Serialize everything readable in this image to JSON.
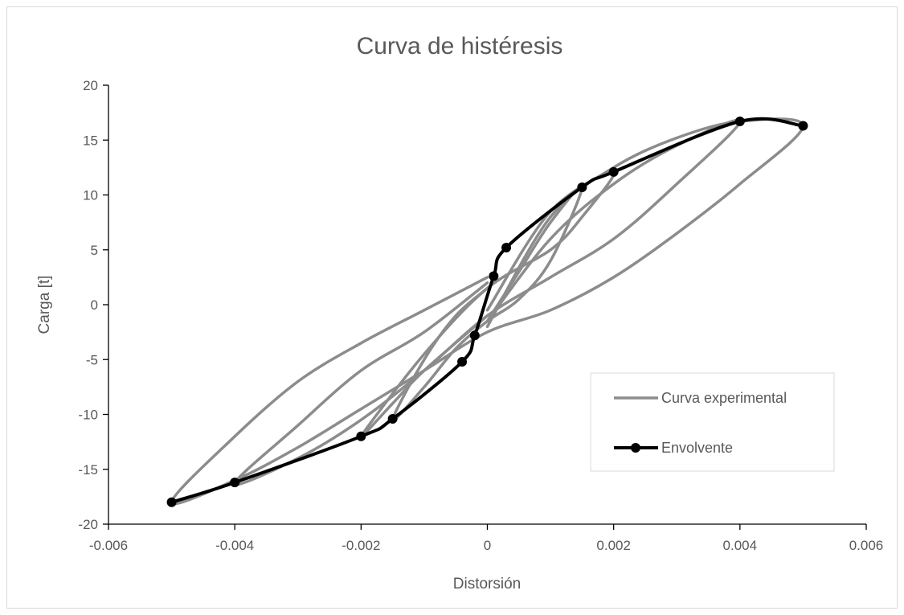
{
  "chart_data": {
    "type": "line",
    "title": "Curva de histéresis",
    "xlabel": "Distorsión",
    "ylabel": "Carga [t]",
    "xlim": [
      -0.006,
      0.006
    ],
    "ylim": [
      -20,
      20
    ],
    "xticks": [
      "-0.006",
      "-0.004",
      "-0.002",
      "0",
      "0.002",
      "0.004",
      "0.006"
    ],
    "yticks": [
      "20",
      "15",
      "10",
      "5",
      "0",
      "-5",
      "-10",
      "-15",
      "-20"
    ],
    "grid": false,
    "legend_position": "bottom-right",
    "colors": {
      "experimental": "#8c8c8c",
      "envelope": "#000000",
      "text": "#595959",
      "axis": "#000000"
    },
    "series": [
      {
        "name": "Curva experimental",
        "cycles": [
          {
            "x": [
              0,
              0.0005,
              0.001,
              0.0015,
              0.001,
              0.0005,
              0,
              -0.0005,
              -0.001,
              -0.0015,
              -0.001,
              -0.0005,
              0
            ],
            "y": [
              -1.5,
              3,
              7.5,
              10.7,
              4,
              0.5,
              -1.5,
              -4,
              -7.5,
              -10.5,
              -5,
              -1,
              1.5
            ]
          },
          {
            "x": [
              0,
              0.001,
              0.002,
              0.0015,
              0.001,
              0,
              -0.001,
              -0.002,
              -0.0015,
              -0.001,
              0
            ],
            "y": [
              -0.5,
              8.5,
              12.1,
              8,
              5,
              1.5,
              -4.5,
              -12,
              -9,
              -6,
              -1
            ]
          },
          {
            "x": [
              0,
              0.001,
              0.002,
              0.003,
              0.004,
              0.003,
              0.002,
              0.001,
              0,
              -0.001,
              -0.002,
              -0.003,
              -0.004,
              -0.003,
              -0.002,
              -0.001,
              0
            ],
            "y": [
              -1.5,
              6,
              11,
              14.5,
              16.7,
              11,
              6,
              2.5,
              -1,
              -6,
              -10.5,
              -14,
              -16.3,
              -11,
              -6,
              -2.5,
              2
            ]
          },
          {
            "x": [
              0,
              0.001,
              0.002,
              0.003,
              0.004,
              0.005,
              0.004,
              0.003,
              0.002,
              0.001,
              0,
              -0.001,
              -0.002,
              -0.003,
              -0.004,
              -0.005,
              -0.004,
              -0.003,
              -0.002,
              -0.001,
              0
            ],
            "y": [
              -2,
              8,
              12.5,
              15.2,
              16.7,
              16.3,
              11,
              6.5,
              2.5,
              -0.5,
              -2.5,
              -6,
              -9.5,
              -13,
              -16,
              -18,
              -12,
              -7,
              -3.5,
              -0.5,
              2.5
            ]
          }
        ]
      },
      {
        "name": "Envolvente",
        "x": [
          -0.005,
          -0.004,
          -0.002,
          -0.0015,
          -0.0004,
          -0.0002,
          0.0001,
          0.0003,
          0.0015,
          0.002,
          0.004,
          0.005
        ],
        "y": [
          -18,
          -16.2,
          -12,
          -10.4,
          -5.2,
          -2.8,
          2.6,
          5.2,
          10.7,
          12.1,
          16.7,
          16.3
        ]
      }
    ]
  }
}
